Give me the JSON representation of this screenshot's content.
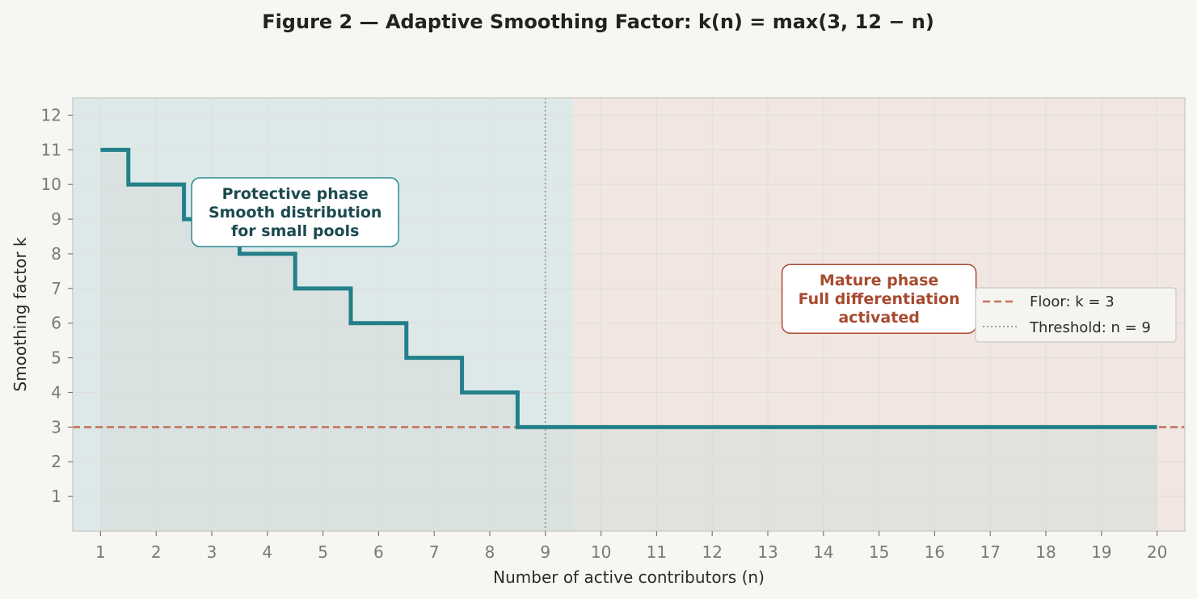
{
  "chart_data": {
    "type": "line",
    "title": "Figure 2 — Adaptive Smoothing Factor: k(n) = max(3, 12 − n)",
    "xlabel": "Number of active contributors (n)",
    "ylabel": "Smoothing factor k",
    "xlim": [
      0.5,
      20.5
    ],
    "ylim": [
      0,
      12.5
    ],
    "x_ticks": [
      "1",
      "2",
      "3",
      "4",
      "5",
      "6",
      "7",
      "8",
      "9",
      "10",
      "11",
      "12",
      "13",
      "14",
      "15",
      "16",
      "17",
      "18",
      "19",
      "20"
    ],
    "y_ticks": [
      "1",
      "2",
      "3",
      "4",
      "5",
      "6",
      "7",
      "8",
      "9",
      "10",
      "11",
      "12"
    ],
    "grid": true,
    "step": "mid",
    "series": [
      {
        "x": [
          1,
          2,
          3,
          4,
          5,
          6,
          7,
          8,
          9,
          10,
          11,
          12,
          13,
          14,
          15,
          16,
          17,
          18,
          19,
          20
        ],
        "values": [
          11,
          10,
          9,
          8,
          7,
          6,
          5,
          4,
          3,
          3,
          3,
          3,
          3,
          3,
          3,
          3,
          3,
          3,
          3,
          3
        ],
        "color": "#237f8a"
      }
    ],
    "regions": [
      {
        "x_range": [
          0.5,
          9.5
        ],
        "color": "#dde9e8"
      },
      {
        "x_range": [
          9.5,
          20.5
        ],
        "color": "#f1e6e1"
      }
    ],
    "floor": {
      "y": 3,
      "label": "Floor: k = 3",
      "color": "#c4705b"
    },
    "threshold": {
      "x": 9,
      "label": "Threshold: n = 9",
      "color": "#a0a09a"
    },
    "annotations": [
      {
        "lines": [
          "Protective phase",
          "Smooth distribution",
          "for small pools"
        ],
        "x": 4.5,
        "y": 9.2,
        "text_color": "#1b4a50",
        "border_color": "#2d8a91"
      },
      {
        "lines": [
          "Mature phase",
          "Full differentiation",
          "activated"
        ],
        "x": 15,
        "y": 6.7,
        "text_color": "#a84a30",
        "border_color": "#a84a30"
      }
    ],
    "legend_position": "right",
    "colors": {
      "background": "#f7f6f2",
      "plot_border": "#cfcfca",
      "grid": "#e0dfda",
      "fill_under_curve": "#d6dddb"
    }
  }
}
